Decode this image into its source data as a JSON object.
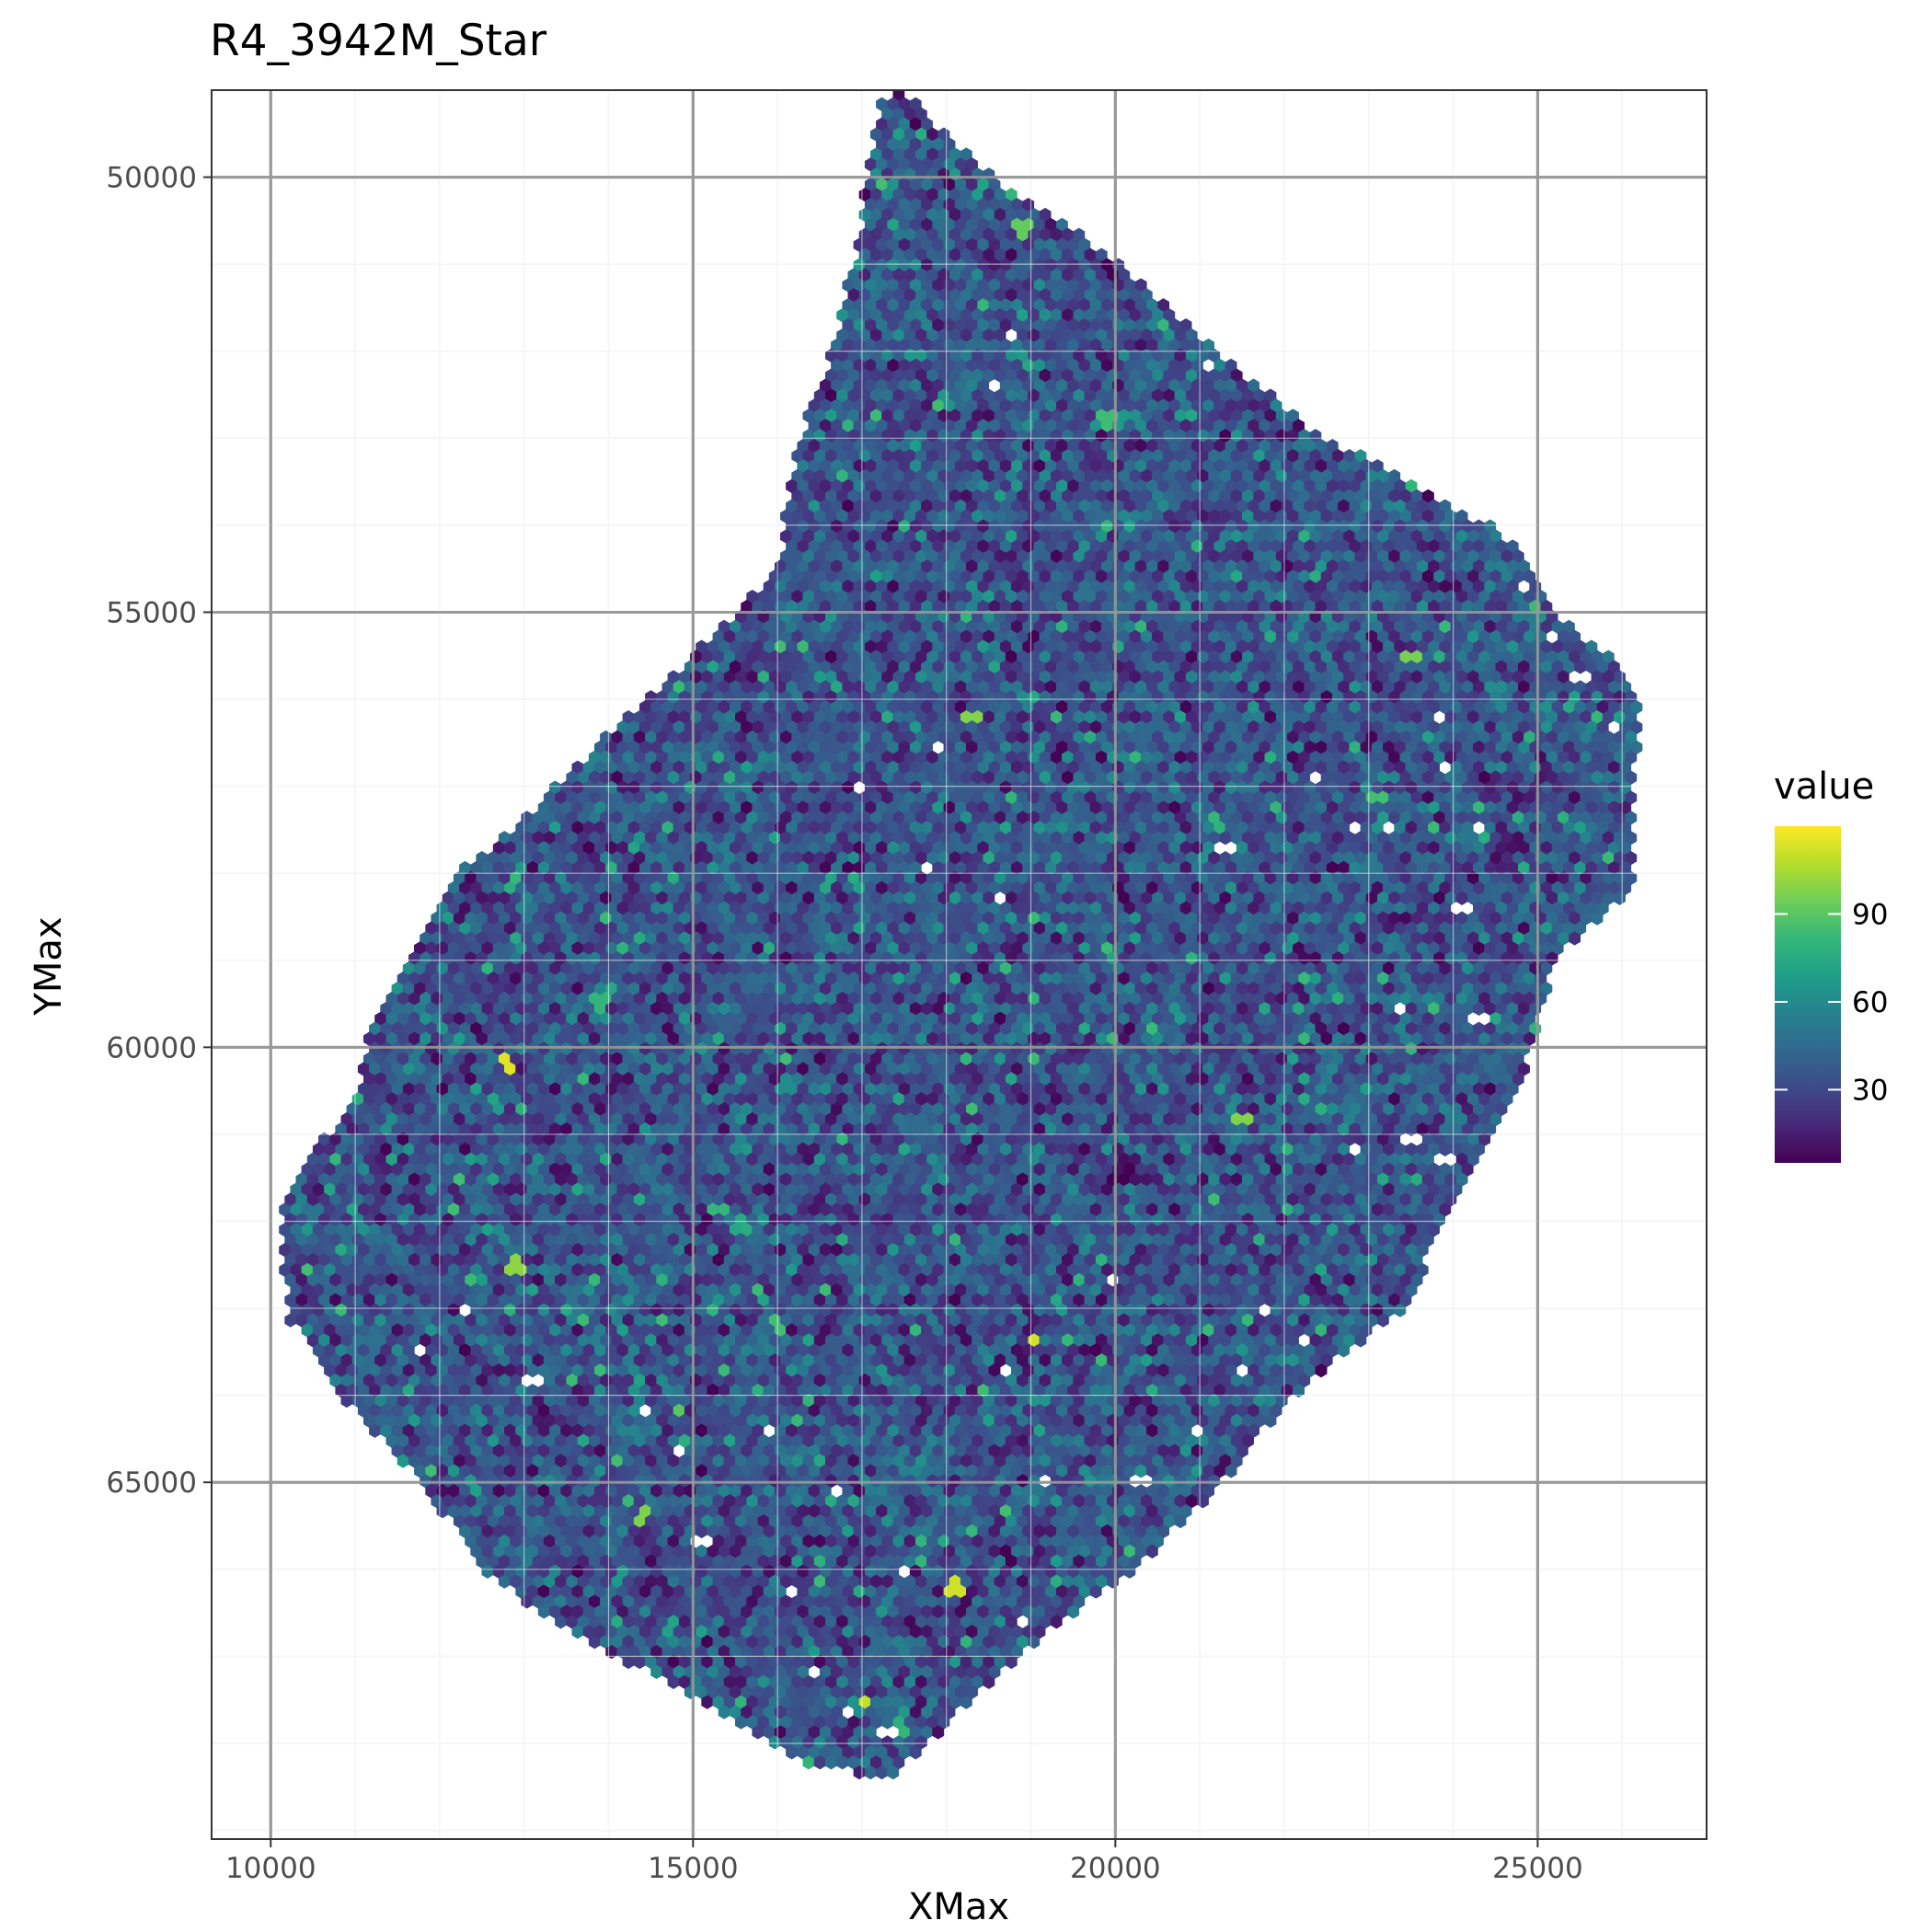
{
  "chart_data": {
    "type": "heatmap",
    "subtype": "hexbin",
    "title": "R4_3942M_Star",
    "xlabel": "XMax",
    "ylabel": "YMax",
    "xlim": [
      9300,
      27000
    ],
    "ylim": [
      49000,
      69100
    ],
    "y_reversed": true,
    "x_ticks": [
      10000,
      15000,
      20000,
      25000
    ],
    "x_tick_labels": [
      "10000",
      "15000",
      "20000",
      "25000"
    ],
    "y_ticks": [
      50000,
      55000,
      60000,
      65000
    ],
    "y_tick_labels": [
      "50000",
      "55000",
      "60000",
      "65000"
    ],
    "grid": true,
    "theme": "bw",
    "legend": {
      "title": "value",
      "placement": "right",
      "range": [
        5,
        120
      ],
      "breaks": [
        30,
        60,
        90
      ],
      "break_labels": [
        "30",
        "60",
        "90"
      ],
      "palette": "viridis",
      "colors": [
        "#440154",
        "#482878",
        "#3e4a89",
        "#31688e",
        "#26828e",
        "#1f9e89",
        "#35b779",
        "#6ece58",
        "#b5de2b",
        "#fde725"
      ]
    },
    "hex_size": 55,
    "typical_value_range": [
      20,
      50
    ],
    "region_outline": [
      [
        17400,
        48900
      ],
      [
        18400,
        49900
      ],
      [
        19800,
        50800
      ],
      [
        21000,
        51800
      ],
      [
        22300,
        52900
      ],
      [
        23500,
        53500
      ],
      [
        24600,
        54100
      ],
      [
        25400,
        55200
      ],
      [
        25900,
        55500
      ],
      [
        26200,
        56100
      ],
      [
        26100,
        58200
      ],
      [
        25200,
        59000
      ],
      [
        24800,
        60400
      ],
      [
        23400,
        63000
      ],
      [
        22100,
        64000
      ],
      [
        21200,
        65100
      ],
      [
        20100,
        66100
      ],
      [
        19200,
        66700
      ],
      [
        18400,
        67400
      ],
      [
        17900,
        67900
      ],
      [
        17300,
        68400
      ],
      [
        16200,
        68200
      ],
      [
        15800,
        67900
      ],
      [
        14900,
        67400
      ],
      [
        13500,
        66700
      ],
      [
        12500,
        66000
      ],
      [
        11800,
        65000
      ],
      [
        10800,
        64000
      ],
      [
        10200,
        63100
      ],
      [
        10100,
        62000
      ],
      [
        10400,
        61300
      ],
      [
        11000,
        60600
      ],
      [
        11200,
        59700
      ],
      [
        11700,
        58900
      ],
      [
        12100,
        58100
      ],
      [
        12700,
        57600
      ],
      [
        13500,
        56900
      ],
      [
        14300,
        56100
      ],
      [
        15100,
        55400
      ],
      [
        16000,
        54500
      ],
      [
        16200,
        53200
      ],
      [
        16600,
        52100
      ],
      [
        16900,
        51000
      ],
      [
        17100,
        49800
      ],
      [
        17200,
        49200
      ]
    ],
    "notable_hexes": [
      {
        "x": 12800,
        "y": 60200,
        "value": 115
      },
      {
        "x": 19000,
        "y": 63400,
        "value": 112
      },
      {
        "x": 18100,
        "y": 66200,
        "value": 112
      },
      {
        "x": 17000,
        "y": 67500,
        "value": 110
      },
      {
        "x": 12900,
        "y": 62500,
        "value": 100
      },
      {
        "x": 18300,
        "y": 56200,
        "value": 98
      },
      {
        "x": 21500,
        "y": 60800,
        "value": 98
      },
      {
        "x": 14400,
        "y": 65400,
        "value": 97
      },
      {
        "x": 23500,
        "y": 55500,
        "value": 96
      },
      {
        "x": 22500,
        "y": 52200,
        "value": 93
      },
      {
        "x": 18900,
        "y": 50600,
        "value": 92
      },
      {
        "x": 14800,
        "y": 64200,
        "value": 90
      },
      {
        "x": 17900,
        "y": 49100,
        "value": 88
      },
      {
        "x": 16000,
        "y": 63200,
        "value": 85
      },
      {
        "x": 19900,
        "y": 52800,
        "value": 84
      },
      {
        "x": 13900,
        "y": 59500,
        "value": 80
      },
      {
        "x": 23100,
        "y": 57100,
        "value": 85
      }
    ],
    "empty_hexes": [
      [
        18600,
        52400
      ],
      [
        18800,
        51800
      ],
      [
        21100,
        52200
      ],
      [
        17900,
        56600
      ],
      [
        17000,
        57000
      ],
      [
        21300,
        57700
      ],
      [
        18600,
        58300
      ],
      [
        17800,
        57900
      ],
      [
        22400,
        56900
      ],
      [
        22800,
        57500
      ],
      [
        23200,
        57500
      ],
      [
        23900,
        56800
      ],
      [
        24300,
        59700
      ],
      [
        23400,
        59600
      ],
      [
        24100,
        58400
      ],
      [
        23500,
        61100
      ],
      [
        22800,
        61200
      ],
      [
        23900,
        61300
      ],
      [
        11800,
        63500
      ],
      [
        13100,
        63800
      ],
      [
        14400,
        64200
      ],
      [
        15900,
        64400
      ],
      [
        16700,
        65100
      ],
      [
        17500,
        66000
      ],
      [
        19200,
        65000
      ],
      [
        20300,
        65000
      ],
      [
        21000,
        64400
      ],
      [
        21500,
        63700
      ],
      [
        22200,
        63400
      ],
      [
        22600,
        63900
      ],
      [
        20000,
        62700
      ],
      [
        16400,
        67200
      ],
      [
        16800,
        67600
      ],
      [
        17300,
        67900
      ],
      [
        18900,
        66600
      ],
      [
        24300,
        52900
      ],
      [
        24800,
        54700
      ],
      [
        25200,
        55300
      ],
      [
        25500,
        55700
      ],
      [
        25900,
        56300
      ],
      [
        23800,
        56200
      ],
      [
        21800,
        63000
      ],
      [
        12300,
        63000
      ],
      [
        18700,
        63700
      ],
      [
        14800,
        64600
      ],
      [
        24300,
        57500
      ],
      [
        15100,
        65700
      ],
      [
        16200,
        66300
      ]
    ]
  }
}
